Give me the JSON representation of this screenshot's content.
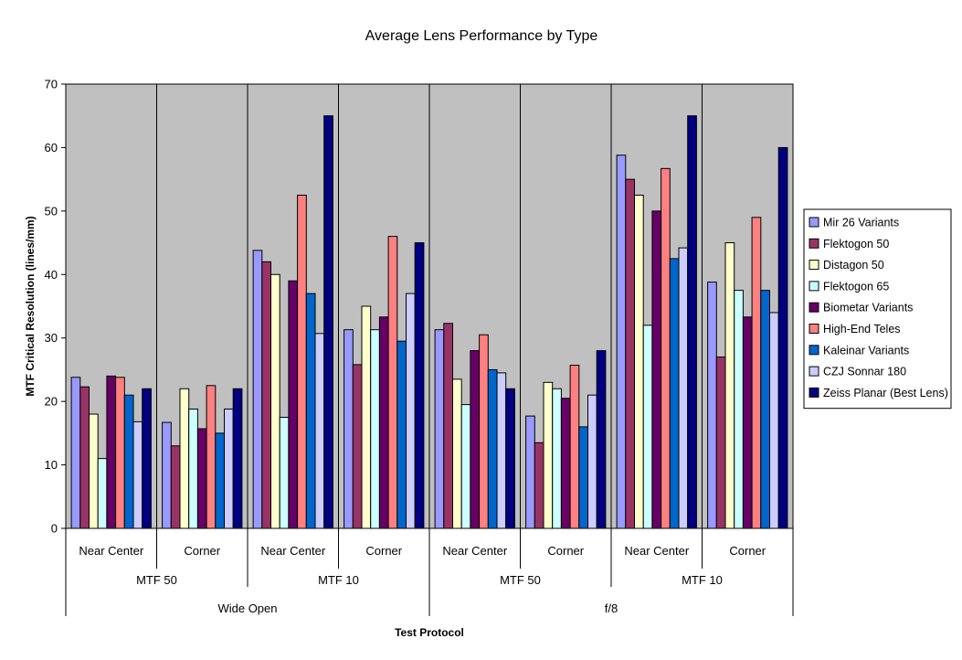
{
  "chart_data": {
    "type": "bar",
    "title": "Average Lens Performance by Type",
    "xlabel": "Test Protocol",
    "ylabel": "MTF Critical Resolution (lines/mm)",
    "ylim": [
      0,
      70
    ],
    "yticks": [
      0,
      10,
      20,
      30,
      40,
      50,
      60,
      70
    ],
    "grid": false,
    "legend_position": "right",
    "category_levels": {
      "level1": [
        "Near Center",
        "Corner",
        "Near Center",
        "Corner",
        "Near Center",
        "Corner",
        "Near Center",
        "Corner"
      ],
      "level2": [
        "MTF 50",
        "MTF 10",
        "MTF 50",
        "MTF 10"
      ],
      "level3": [
        "Wide Open",
        "f/8"
      ]
    },
    "series": [
      {
        "name": "Mir 26 Variants",
        "color": "#9999ff",
        "values": [
          23.8,
          16.7,
          43.8,
          31.3,
          31.3,
          17.7,
          58.8,
          38.8
        ]
      },
      {
        "name": "Flektogon 50",
        "color": "#993366",
        "values": [
          22.3,
          13.0,
          42.0,
          25.8,
          32.3,
          13.5,
          55.0,
          27.0
        ]
      },
      {
        "name": "Distagon 50",
        "color": "#ffffcc",
        "values": [
          18.0,
          22.0,
          40.0,
          35.0,
          23.5,
          23.0,
          52.5,
          45.0
        ]
      },
      {
        "name": "Flektogon 65",
        "color": "#ccffff",
        "values": [
          11.0,
          18.8,
          17.5,
          31.3,
          19.5,
          22.0,
          32.0,
          37.5
        ]
      },
      {
        "name": "Biometar Variants",
        "color": "#660066",
        "values": [
          24.0,
          15.7,
          39.0,
          33.3,
          28.0,
          20.5,
          50.0,
          33.3
        ]
      },
      {
        "name": "High-End Teles",
        "color": "#ff8080",
        "values": [
          23.8,
          22.5,
          52.5,
          46.0,
          30.5,
          25.7,
          56.7,
          49.0
        ]
      },
      {
        "name": "Kaleinar Variants",
        "color": "#0066cc",
        "values": [
          21.0,
          15.0,
          37.0,
          29.5,
          25.0,
          16.0,
          42.5,
          37.5
        ]
      },
      {
        "name": "CZJ Sonnar 180",
        "color": "#ccccff",
        "values": [
          16.8,
          18.8,
          30.7,
          37.0,
          24.5,
          21.0,
          44.2,
          34.0
        ]
      },
      {
        "name": "Zeiss Planar (Best Lens)",
        "color": "#000080",
        "values": [
          22.0,
          22.0,
          65.0,
          45.0,
          22.0,
          28.0,
          65.0,
          60.0
        ]
      }
    ]
  },
  "style": {
    "plot_background": "#c0c0c0",
    "bar_outline": "#000000"
  }
}
